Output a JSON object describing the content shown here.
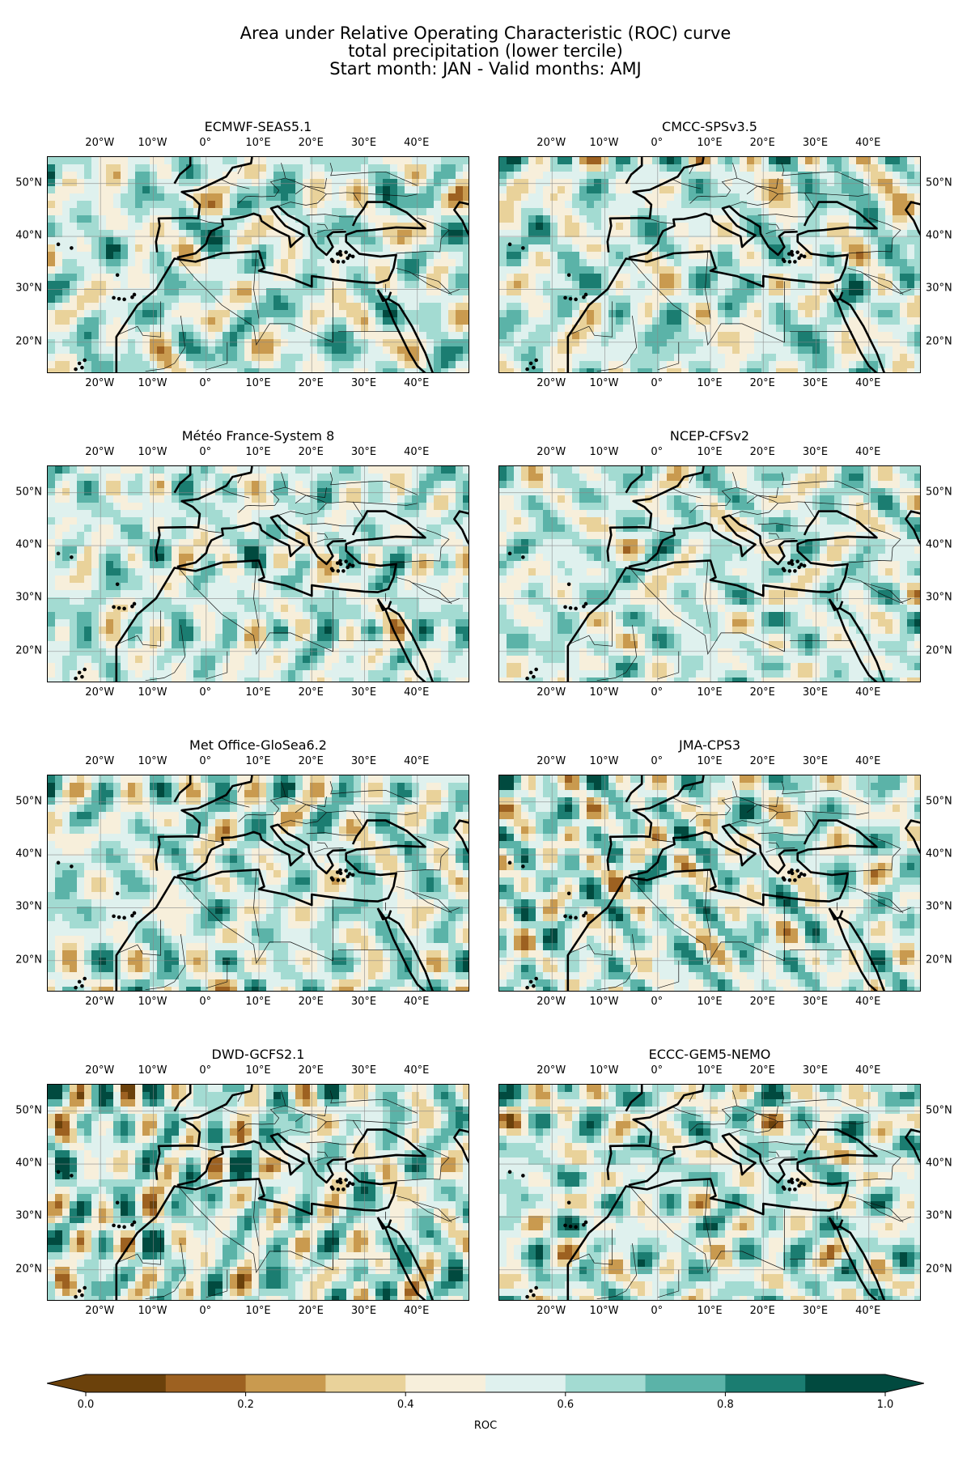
{
  "title": {
    "line1": "Area under Relative Operating Characteristic (ROC) curve",
    "line2": "total precipitation (lower tercile)",
    "line3": "Start month: JAN - Valid months: AMJ"
  },
  "panels": [
    {
      "name": "ECMWF-SEAS5.1",
      "seed": 11
    },
    {
      "name": "CMCC-SPSv3.5",
      "seed": 23
    },
    {
      "name": "Météo France-System 8",
      "seed": 37
    },
    {
      "name": "NCEP-CFSv2",
      "seed": 41
    },
    {
      "name": "Met Office-GloSea6.2",
      "seed": 53
    },
    {
      "name": "JMA-CPS3",
      "seed": 67
    },
    {
      "name": "DWD-GCFS2.1",
      "seed": 79
    },
    {
      "name": "ECCC-GEM5-NEMO",
      "seed": 83
    }
  ],
  "map_extent": {
    "lon": [
      -30,
      50
    ],
    "lat": [
      14,
      55
    ]
  },
  "lon_ticks": [
    -20,
    -10,
    0,
    10,
    20,
    30,
    40
  ],
  "lon_tick_labels": [
    "20°W",
    "10°W",
    "0°",
    "10°E",
    "20°E",
    "30°E",
    "40°E"
  ],
  "lat_ticks": [
    20,
    30,
    40,
    50
  ],
  "lat_tick_labels": [
    "20°N",
    "30°N",
    "40°N",
    "50°N"
  ],
  "colorbar": {
    "label": "ROC",
    "ticks": [
      0.0,
      0.2,
      0.4,
      0.6,
      0.8,
      1.0
    ],
    "tick_labels": [
      "0.0",
      "0.2",
      "0.4",
      "0.6",
      "0.8",
      "1.0"
    ],
    "levels": [
      0.0,
      0.1,
      0.2,
      0.3,
      0.4,
      0.5,
      0.6,
      0.7,
      0.8,
      0.9,
      1.0
    ],
    "colors": [
      "#6b410b",
      "#9d6121",
      "#c99a4f",
      "#e9d29a",
      "#f7efdb",
      "#dff1ee",
      "#a3dbd2",
      "#5bb3a8",
      "#1b7d71",
      "#014a3f"
    ],
    "extend": "both"
  }
}
